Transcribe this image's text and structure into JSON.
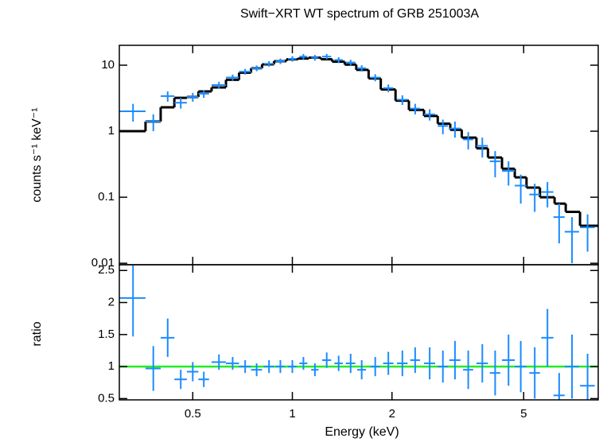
{
  "chart_data": [
    {
      "type": "scatter",
      "title": "Swift−XRT WT spectrum of GRB 251003A",
      "ylabel": "counts s⁻¹ keV⁻¹",
      "xscale": "log",
      "yscale": "log",
      "xlim": [
        0.3,
        8.4
      ],
      "ylim": [
        0.0095,
        20
      ],
      "yticks": [
        10,
        1,
        0.1,
        0.01
      ],
      "series": [
        {
          "color": "#1a8cff",
          "x": [
            0.33,
            0.38,
            0.42,
            0.46,
            0.5,
            0.54,
            0.6,
            0.66,
            0.72,
            0.78,
            0.85,
            0.92,
            1.0,
            1.08,
            1.17,
            1.27,
            1.38,
            1.5,
            1.62,
            1.78,
            1.95,
            2.15,
            2.35,
            2.6,
            2.85,
            3.1,
            3.4,
            3.75,
            4.1,
            4.5,
            4.9,
            5.4,
            5.9,
            6.4,
            7.0,
            7.8
          ],
          "x_err": [
            0.03,
            0.02,
            0.02,
            0.02,
            0.02,
            0.02,
            0.03,
            0.03,
            0.03,
            0.03,
            0.03,
            0.03,
            0.03,
            0.03,
            0.03,
            0.04,
            0.04,
            0.05,
            0.05,
            0.06,
            0.07,
            0.08,
            0.08,
            0.1,
            0.1,
            0.12,
            0.12,
            0.15,
            0.15,
            0.2,
            0.2,
            0.2,
            0.25,
            0.25,
            0.35,
            0.4
          ],
          "values": [
            2.0,
            1.4,
            3.4,
            2.7,
            3.3,
            3.7,
            5.0,
            6.5,
            8.0,
            9.0,
            10.5,
            11.5,
            12.5,
            13.5,
            13.0,
            13.5,
            12.0,
            11.0,
            9.0,
            6.5,
            4.5,
            3.0,
            2.2,
            1.8,
            1.2,
            1.1,
            0.75,
            0.6,
            0.35,
            0.25,
            0.15,
            0.11,
            0.12,
            0.05,
            0.03,
            0.035
          ],
          "errors": [
            0.6,
            0.4,
            0.6,
            0.5,
            0.5,
            0.5,
            0.6,
            0.7,
            0.8,
            0.9,
            1.0,
            1.1,
            1.2,
            1.3,
            1.3,
            1.3,
            1.2,
            1.1,
            1.0,
            0.8,
            0.6,
            0.5,
            0.4,
            0.35,
            0.3,
            0.3,
            0.22,
            0.2,
            0.15,
            0.1,
            0.07,
            0.05,
            0.05,
            0.03,
            0.02,
            0.02
          ]
        }
      ],
      "model": {
        "color": "#000000",
        "bins": [
          0.3,
          0.36,
          0.4,
          0.44,
          0.48,
          0.52,
          0.57,
          0.63,
          0.69,
          0.75,
          0.81,
          0.88,
          0.96,
          1.04,
          1.12,
          1.22,
          1.32,
          1.44,
          1.56,
          1.7,
          1.85,
          2.05,
          2.25,
          2.5,
          2.75,
          3.0,
          3.25,
          3.6,
          3.9,
          4.3,
          4.7,
          5.1,
          5.6,
          6.2,
          6.7,
          7.4,
          8.4
        ],
        "values": [
          1.0,
          1.4,
          2.3,
          3.2,
          3.3,
          4.0,
          4.6,
          6.0,
          7.7,
          9.0,
          10.3,
          11.5,
          12.3,
          12.6,
          13.0,
          12.3,
          11.3,
          10.2,
          8.5,
          6.3,
          4.3,
          2.9,
          2.1,
          1.7,
          1.3,
          1.05,
          0.8,
          0.55,
          0.4,
          0.27,
          0.2,
          0.14,
          0.1,
          0.08,
          0.06,
          0.037
        ]
      }
    },
    {
      "type": "scatter",
      "ylabel": "ratio",
      "xlabel": "Energy (keV)",
      "xscale": "log",
      "xlim": [
        0.3,
        8.4
      ],
      "ylim": [
        0.48,
        2.59
      ],
      "xticks": [
        0.5,
        1,
        2,
        5
      ],
      "yticks": [
        2.5,
        2,
        1.5,
        1,
        0.5
      ],
      "reference": {
        "value": 1,
        "color": "#22ee22"
      },
      "series": [
        {
          "color": "#1a8cff",
          "x": [
            0.33,
            0.38,
            0.42,
            0.46,
            0.5,
            0.54,
            0.6,
            0.66,
            0.72,
            0.78,
            0.85,
            0.92,
            1.0,
            1.08,
            1.17,
            1.27,
            1.38,
            1.5,
            1.62,
            1.78,
            1.95,
            2.15,
            2.35,
            2.6,
            2.85,
            3.1,
            3.4,
            3.75,
            4.1,
            4.5,
            4.9,
            5.4,
            5.9,
            6.4,
            7.0,
            7.8
          ],
          "x_err": [
            0.03,
            0.02,
            0.02,
            0.02,
            0.02,
            0.02,
            0.03,
            0.03,
            0.03,
            0.03,
            0.03,
            0.03,
            0.03,
            0.03,
            0.03,
            0.04,
            0.04,
            0.05,
            0.05,
            0.06,
            0.07,
            0.08,
            0.08,
            0.1,
            0.1,
            0.12,
            0.12,
            0.15,
            0.15,
            0.2,
            0.2,
            0.2,
            0.25,
            0.25,
            0.35,
            0.4
          ],
          "values": [
            2.07,
            0.97,
            1.45,
            0.8,
            0.92,
            0.8,
            1.07,
            1.05,
            1.0,
            0.95,
            1.0,
            1.0,
            1.0,
            1.05,
            0.95,
            1.1,
            1.05,
            1.05,
            0.95,
            1.0,
            1.05,
            1.05,
            1.1,
            1.05,
            1.0,
            1.1,
            0.95,
            1.05,
            0.9,
            1.1,
            1.0,
            0.9,
            1.45,
            0.55,
            1.0,
            0.7
          ],
          "errors": [
            0.6,
            0.35,
            0.3,
            0.15,
            0.15,
            0.12,
            0.12,
            0.1,
            0.1,
            0.1,
            0.1,
            0.1,
            0.1,
            0.1,
            0.1,
            0.12,
            0.12,
            0.15,
            0.15,
            0.15,
            0.18,
            0.2,
            0.2,
            0.25,
            0.25,
            0.3,
            0.3,
            0.3,
            0.35,
            0.4,
            0.4,
            0.4,
            0.45,
            0.35,
            0.5,
            0.5
          ]
        }
      ]
    }
  ]
}
